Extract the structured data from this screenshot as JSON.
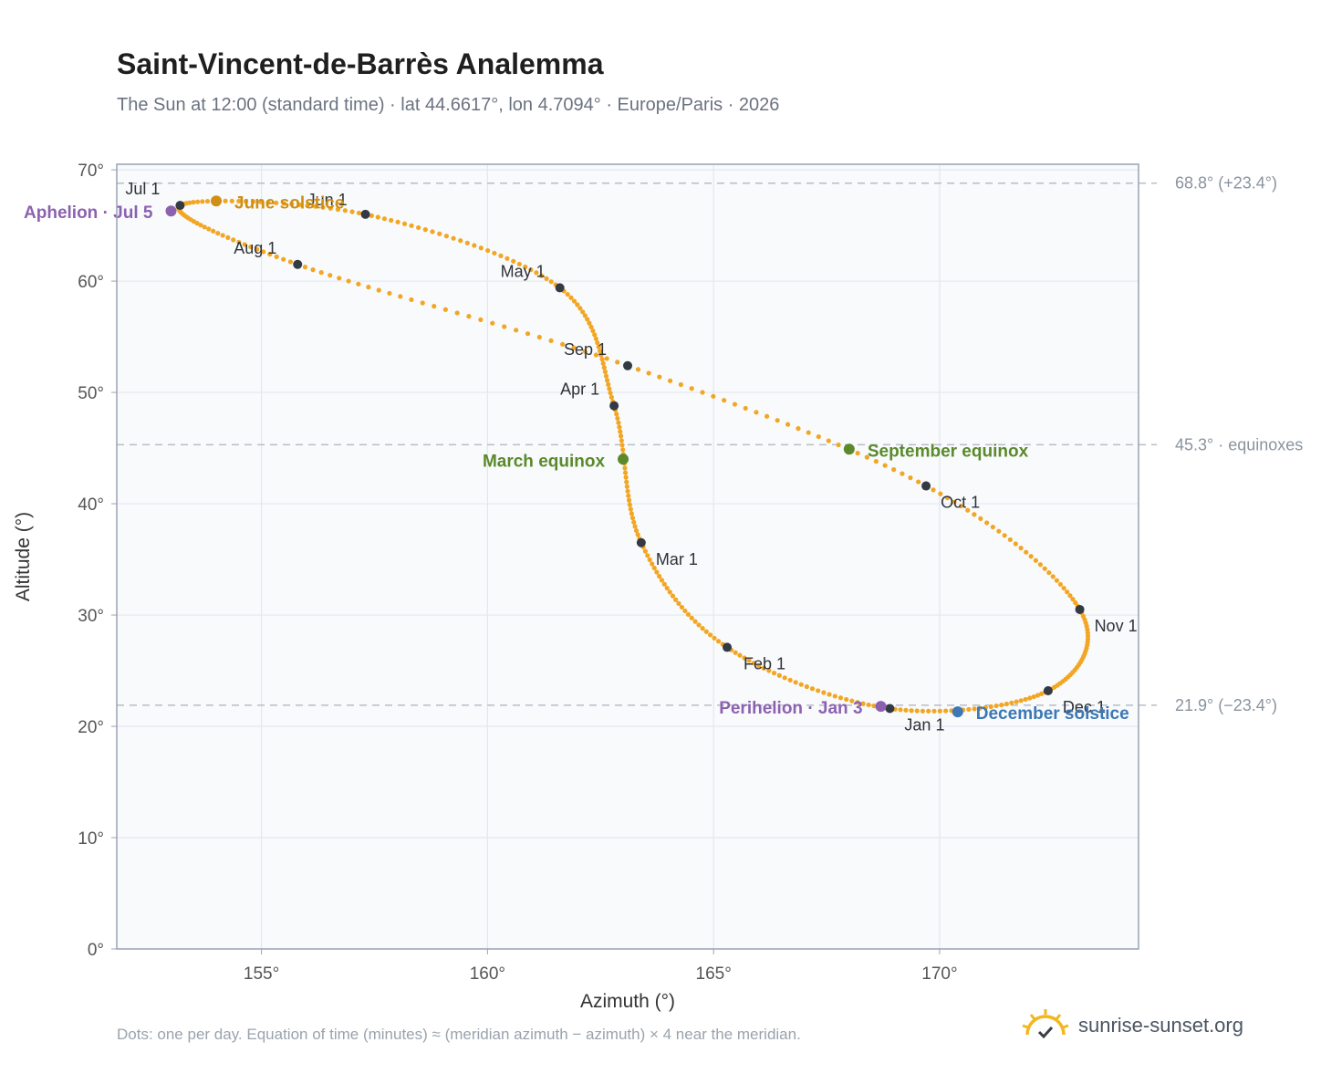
{
  "header": {
    "title": "Saint-Vincent-de-Barrès Analemma",
    "subtitle": "The Sun at 12:00 (standard time) · lat 44.6617°, lon 4.7094° · Europe/Paris · 2026"
  },
  "footer": {
    "note": "Dots: one per day. Equation of time (minutes) ≈ (meridian azimuth − azimuth) × 4 near the meridian.",
    "brand": "sunrise-sunset.org",
    "brand_icon": "sun-check-icon"
  },
  "colors": {
    "path": "#f2a623",
    "month_marker": "#333a44",
    "equinox": "#5a8a2b",
    "june_solstice": "#d08f12",
    "december_solstice": "#3b78b5",
    "aphelion_perihelion": "#8c62b0",
    "plot_background": "#f8fafc",
    "grid": "#e3e8ee",
    "frame": "#98a4b3",
    "reference_line": "#b8bec6"
  },
  "chart_data": {
    "type": "scatter",
    "title": "Saint-Vincent-de-Barrès Analemma",
    "xlabel": "Azimuth (°)",
    "ylabel": "Altitude (°)",
    "xlim": [
      151.8,
      174.4
    ],
    "ylim": [
      0,
      70.5
    ],
    "xticks": [
      155,
      160,
      165,
      170
    ],
    "xtick_labels": [
      "155°",
      "160°",
      "165°",
      "170°"
    ],
    "yticks": [
      0,
      10,
      20,
      30,
      40,
      50,
      60,
      70
    ],
    "ytick_labels": [
      "0°",
      "10°",
      "20°",
      "30°",
      "40°",
      "50°",
      "60°",
      "70°"
    ],
    "grid": true,
    "reference_lines": [
      {
        "altitude": 68.8,
        "label": "68.8° (+23.4°)"
      },
      {
        "altitude": 45.3,
        "label": "45.3° · equinoxes"
      },
      {
        "altitude": 21.9,
        "label": "21.9° (−23.4°)"
      }
    ],
    "month_markers": [
      {
        "label": "Jan 1",
        "az": 168.9,
        "alt": 21.6
      },
      {
        "label": "Feb 1",
        "az": 165.3,
        "alt": 27.1
      },
      {
        "label": "Mar 1",
        "az": 163.4,
        "alt": 36.5
      },
      {
        "label": "Apr 1",
        "az": 162.8,
        "alt": 48.8
      },
      {
        "label": "May 1",
        "az": 161.6,
        "alt": 59.4
      },
      {
        "label": "Jun 1",
        "az": 157.3,
        "alt": 66.0
      },
      {
        "label": "Jul 1",
        "az": 153.2,
        "alt": 66.8
      },
      {
        "label": "Aug 1",
        "az": 155.8,
        "alt": 61.5
      },
      {
        "label": "Sep 1",
        "az": 163.1,
        "alt": 52.4
      },
      {
        "label": "Oct 1",
        "az": 169.7,
        "alt": 41.6
      },
      {
        "label": "Nov 1",
        "az": 173.1,
        "alt": 30.5
      },
      {
        "label": "Dec 1",
        "az": 172.4,
        "alt": 23.2
      }
    ],
    "events": [
      {
        "label": "March equinox",
        "az": 163.0,
        "alt": 44.0,
        "color_key": "equinox"
      },
      {
        "label": "June solstice",
        "az": 154.0,
        "alt": 67.2,
        "color_key": "june_solstice"
      },
      {
        "label": "September equinox",
        "az": 168.0,
        "alt": 44.9,
        "color_key": "equinox"
      },
      {
        "label": "December solstice",
        "az": 170.4,
        "alt": 21.3,
        "color_key": "december_solstice"
      },
      {
        "label": "Aphelion · Jul 5",
        "az": 153.0,
        "alt": 66.3,
        "color_key": "aphelion_perihelion"
      },
      {
        "label": "Perihelion · Jan 3",
        "az": 168.7,
        "alt": 21.8,
        "color_key": "aphelion_perihelion"
      }
    ]
  }
}
